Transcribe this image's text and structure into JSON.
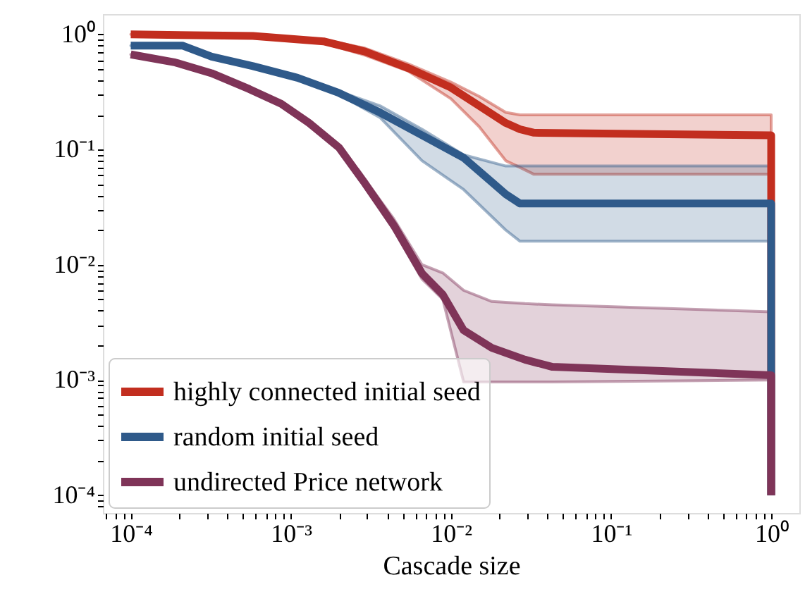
{
  "chart_data": {
    "type": "line",
    "xlabel": "Cascade size",
    "log": "xy",
    "grid": false,
    "legend": "bottom left",
    "line_style": "solid",
    "marker": "none",
    "xlim": [
      6.7e-05,
      1.5
    ],
    "ylim": [
      7e-05,
      1.5
    ],
    "xticks": [
      {
        "value": 7e-05,
        "label": null
      },
      {
        "value": 8e-05,
        "label": null
      },
      {
        "value": 9e-05,
        "label": null
      },
      {
        "value": 0.0001,
        "label": "10⁻⁴"
      },
      {
        "value": 0.0002,
        "label": null
      },
      {
        "value": 0.0003,
        "label": null
      },
      {
        "value": 0.0004,
        "label": null
      },
      {
        "value": 0.0005,
        "label": null
      },
      {
        "value": 0.0006,
        "label": null
      },
      {
        "value": 0.0007,
        "label": null
      },
      {
        "value": 0.0008,
        "label": null
      },
      {
        "value": 0.0009,
        "label": null
      },
      {
        "value": 0.001,
        "label": "10⁻³"
      },
      {
        "value": 0.002,
        "label": null
      },
      {
        "value": 0.003,
        "label": null
      },
      {
        "value": 0.004,
        "label": null
      },
      {
        "value": 0.005,
        "label": null
      },
      {
        "value": 0.006,
        "label": null
      },
      {
        "value": 0.007,
        "label": null
      },
      {
        "value": 0.008,
        "label": null
      },
      {
        "value": 0.009,
        "label": null
      },
      {
        "value": 0.01,
        "label": "10⁻²"
      },
      {
        "value": 0.02,
        "label": null
      },
      {
        "value": 0.03,
        "label": null
      },
      {
        "value": 0.04,
        "label": null
      },
      {
        "value": 0.05,
        "label": null
      },
      {
        "value": 0.06,
        "label": null
      },
      {
        "value": 0.07,
        "label": null
      },
      {
        "value": 0.08,
        "label": null
      },
      {
        "value": 0.09,
        "label": null
      },
      {
        "value": 0.1,
        "label": "10⁻¹"
      },
      {
        "value": 0.2,
        "label": null
      },
      {
        "value": 0.3,
        "label": null
      },
      {
        "value": 0.4,
        "label": null
      },
      {
        "value": 0.5,
        "label": null
      },
      {
        "value": 0.6,
        "label": null
      },
      {
        "value": 0.7,
        "label": null
      },
      {
        "value": 0.8,
        "label": null
      },
      {
        "value": 0.9,
        "label": null
      },
      {
        "value": 1,
        "label": "10⁰"
      }
    ],
    "yticks": [
      {
        "value": 8e-05,
        "label": null
      },
      {
        "value": 9e-05,
        "label": null
      },
      {
        "value": 0.0001,
        "label": "10⁻⁴"
      },
      {
        "value": 0.0002,
        "label": null
      },
      {
        "value": 0.0003,
        "label": null
      },
      {
        "value": 0.0004,
        "label": null
      },
      {
        "value": 0.0005,
        "label": null
      },
      {
        "value": 0.0006,
        "label": null
      },
      {
        "value": 0.0007,
        "label": null
      },
      {
        "value": 0.0008,
        "label": null
      },
      {
        "value": 0.0009,
        "label": null
      },
      {
        "value": 0.001,
        "label": "10⁻³"
      },
      {
        "value": 0.002,
        "label": null
      },
      {
        "value": 0.003,
        "label": null
      },
      {
        "value": 0.004,
        "label": null
      },
      {
        "value": 0.005,
        "label": null
      },
      {
        "value": 0.006,
        "label": null
      },
      {
        "value": 0.007,
        "label": null
      },
      {
        "value": 0.008,
        "label": null
      },
      {
        "value": 0.009,
        "label": null
      },
      {
        "value": 0.01,
        "label": "10⁻²"
      },
      {
        "value": 0.02,
        "label": null
      },
      {
        "value": 0.03,
        "label": null
      },
      {
        "value": 0.04,
        "label": null
      },
      {
        "value": 0.05,
        "label": null
      },
      {
        "value": 0.06,
        "label": null
      },
      {
        "value": 0.07,
        "label": null
      },
      {
        "value": 0.08,
        "label": null
      },
      {
        "value": 0.09,
        "label": null
      },
      {
        "value": 0.1,
        "label": "10⁻¹"
      },
      {
        "value": 0.2,
        "label": null
      },
      {
        "value": 0.3,
        "label": null
      },
      {
        "value": 0.4,
        "label": null
      },
      {
        "value": 0.5,
        "label": null
      },
      {
        "value": 0.6,
        "label": null
      },
      {
        "value": 0.7,
        "label": null
      },
      {
        "value": 0.8,
        "label": null
      },
      {
        "value": 0.9,
        "label": null
      },
      {
        "value": 1,
        "label": "10⁰"
      }
    ],
    "series": [
      {
        "name": "highly connected initial seed",
        "color": "#c22e1f",
        "x": [
          0.0001,
          0.00058,
          0.0016,
          0.0029,
          0.0054,
          0.01,
          0.015,
          0.022,
          0.027,
          0.033,
          1,
          1
        ],
        "values": [
          1.0,
          0.97,
          0.87,
          0.71,
          0.51,
          0.345,
          0.24,
          0.17,
          0.15,
          0.14,
          0.133,
          0.0001
        ],
        "upper": [
          1.0,
          1.0,
          0.9,
          0.76,
          0.555,
          0.385,
          0.29,
          0.21,
          0.2,
          0.2,
          0.2,
          null
        ],
        "lower": [
          1.0,
          0.95,
          0.84,
          0.66,
          0.48,
          0.276,
          0.158,
          0.08,
          0.07,
          0.061,
          0.061,
          null
        ]
      },
      {
        "name": "random initial seed",
        "color": "#2f5a8a",
        "x": [
          0.0001,
          0.00021,
          0.00032,
          0.00058,
          0.0011,
          0.002,
          0.0036,
          0.0066,
          0.012,
          0.022,
          0.027,
          1,
          1
        ],
        "values": [
          0.8,
          0.8,
          0.64,
          0.53,
          0.42,
          0.31,
          0.21,
          0.133,
          0.085,
          0.041,
          0.034,
          0.034,
          0.0001
        ],
        "upper": [
          0.8,
          0.8,
          0.65,
          0.54,
          0.43,
          0.32,
          0.24,
          0.15,
          0.09,
          0.072,
          0.072,
          0.072,
          null
        ],
        "lower": [
          0.8,
          0.8,
          0.63,
          0.52,
          0.41,
          0.3,
          0.19,
          0.08,
          0.045,
          0.02,
          0.016,
          0.016,
          null
        ]
      },
      {
        "name": "undirected Price network",
        "color": "#7f3458",
        "x": [
          0.0001,
          0.00019,
          0.00032,
          0.00055,
          0.00087,
          0.0013,
          0.002,
          0.0029,
          0.0044,
          0.0066,
          0.0089,
          0.012,
          0.018,
          0.029,
          0.043,
          1,
          1
        ],
        "values": [
          0.67,
          0.57,
          0.46,
          0.335,
          0.25,
          0.17,
          0.104,
          0.051,
          0.022,
          0.0084,
          0.0055,
          0.0027,
          0.0019,
          0.0015,
          0.0013,
          0.0011,
          0.0001
        ],
        "upper": [
          0.67,
          0.57,
          0.46,
          0.34,
          0.26,
          0.18,
          0.11,
          0.055,
          0.025,
          0.01,
          0.0085,
          0.006,
          0.0048,
          0.0046,
          0.0045,
          0.0039,
          null
        ],
        "lower": [
          0.67,
          0.57,
          0.46,
          0.33,
          0.24,
          0.16,
          0.1,
          0.048,
          0.02,
          0.0075,
          0.005,
          0.00096,
          0.00096,
          0.00096,
          0.00096,
          0.001,
          null
        ]
      }
    ]
  }
}
